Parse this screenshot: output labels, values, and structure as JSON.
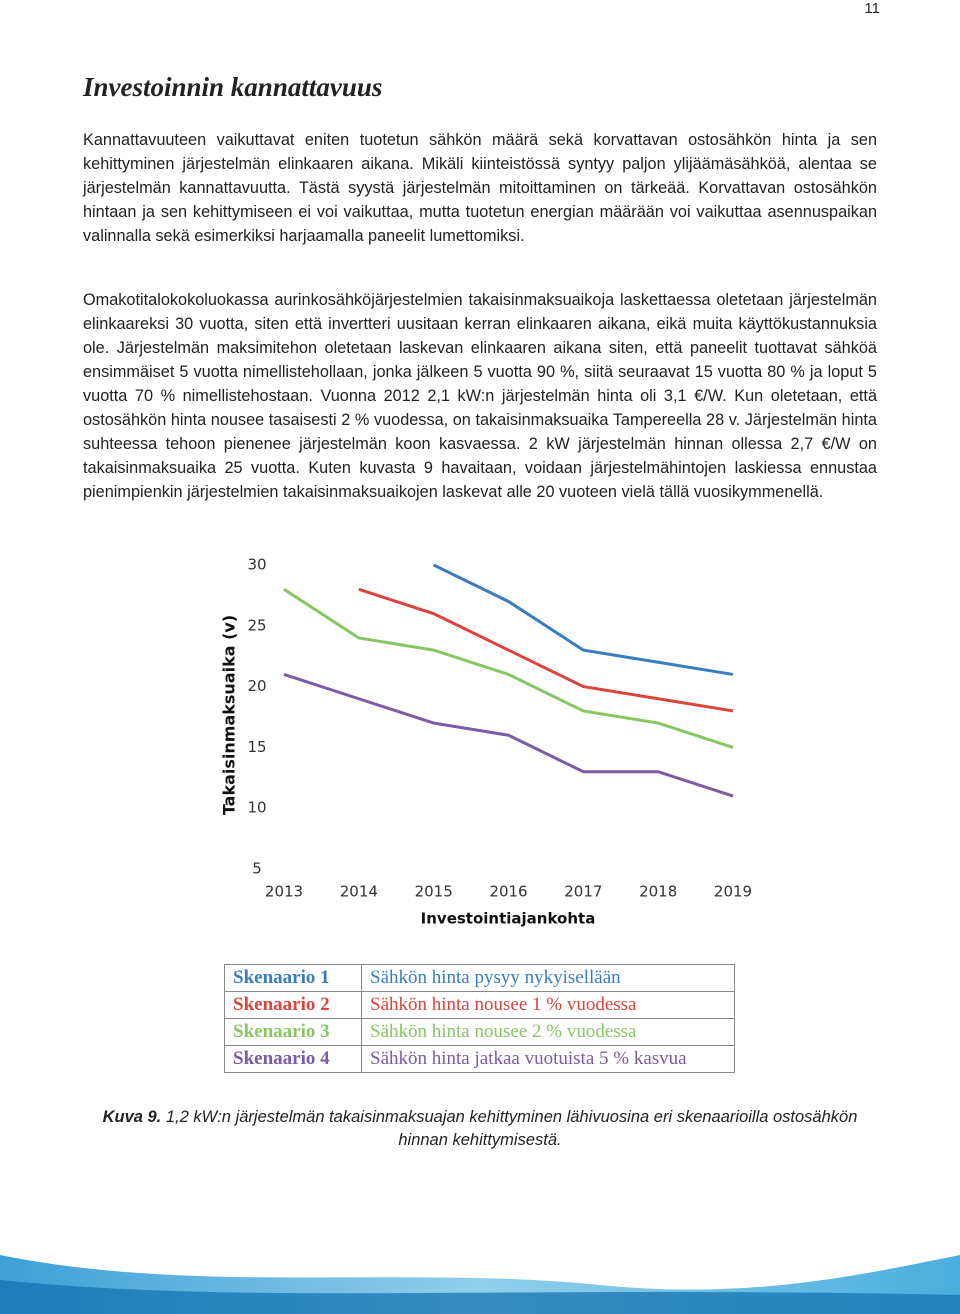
{
  "page_number": "11",
  "heading": "Investoinnin kannattavuus",
  "paragraphs": [
    "Kannattavuuteen vaikuttavat eniten tuotetun sähkön määrä sekä korvattavan ostosähkön hinta ja sen kehittyminen järjestelmän elinkaaren aikana. Mikäli kiinteistössä syntyy paljon ylijäämäsähköä, alentaa se järjestelmän kannattavuutta. Tästä syystä järjestelmän mitoittaminen on tärkeää. Korvattavan ostosähkön hintaan ja sen kehittymiseen ei voi vaikuttaa, mutta tuotetun energian määrään voi vaikuttaa asennuspaikan valinnalla sekä esimerkiksi harjaamalla paneelit lumettomiksi.",
    "Omakotitalokokoluokassa aurinkosähköjärjestelmien takaisinmaksuaikoja laskettaessa oletetaan järjestelmän elinkaareksi 30 vuotta, siten että invertteri uusitaan kerran elinkaaren aikana, eikä muita käyttökustannuksia ole. Järjestelmän maksimitehon oletetaan laskevan elinkaaren aikana siten, että paneelit tuottavat sähköä ensimmäiset 5 vuotta nimellistehollaan, jonka jälkeen 5 vuotta 90 %, siitä seuraavat 15 vuotta 80 % ja loput 5 vuotta 70 % nimellistehostaan. Vuonna 2012 2,1 kW:n järjestelmän hinta oli 3,1 €/W. Kun oletetaan, että ostosähkön hinta nousee tasaisesti 2 % vuodessa, on takaisinmaksuaika Tampereella 28 v. Järjestelmän hinta suhteessa tehoon pienenee järjestelmän koon kasvaessa. 2 kW järjestelmän hinnan ollessa 2,7 €/W on takaisinmaksuaika 25 vuotta. Kuten kuvasta 9 havaitaan, voidaan järjestelmähintojen laskiessa ennustaa pienimpienkin järjestelmien takaisinmaksuaikojen laskevat alle 20 vuoteen vielä tällä vuosikymmenellä."
  ],
  "chart_data": {
    "type": "line",
    "y_label": "Takaisinmaksuaika (v)",
    "x_label": "Investointiajankohta",
    "x": [
      2013,
      2014,
      2015,
      2016,
      2017,
      2018,
      2019
    ],
    "xlim": [
      2013,
      2019
    ],
    "xticks": [
      2013,
      2014,
      2015,
      2016,
      2017,
      2018,
      2019
    ],
    "ylim": [
      5,
      30
    ],
    "yticks": [
      5,
      10,
      15,
      20,
      25,
      30
    ],
    "series": [
      {
        "name": "Skenaario 1",
        "description": "Sähkön hinta pysyy nykyisellään",
        "color": "#3a7dbf",
        "values": [
          null,
          null,
          30,
          27,
          23,
          22,
          21
        ]
      },
      {
        "name": "Skenaario 2",
        "description": "Sähkön hinta nousee 1 % vuodessa",
        "color": "#d9453d",
        "values": [
          null,
          28,
          26,
          23,
          20,
          19,
          18
        ]
      },
      {
        "name": "Skenaario 3",
        "description": "Sähkön hinta nousee 2 % vuodessa",
        "color": "#86c663",
        "values": [
          28,
          24,
          23,
          21,
          18,
          17,
          15
        ]
      },
      {
        "name": "Skenaario 4",
        "description": "Sähkön hinta jatkaa vuotuista 5 % kasvua",
        "color": "#7b5aa6",
        "values": [
          21,
          19,
          17,
          16,
          13,
          13,
          11
        ]
      }
    ]
  },
  "caption": {
    "label": "Kuva 9.",
    "text": "1,2 kW:n järjestelmän takaisinmaksuajan kehittyminen lähivuosina eri skenaarioilla ostosähkön hinnan kehittymisestä."
  }
}
